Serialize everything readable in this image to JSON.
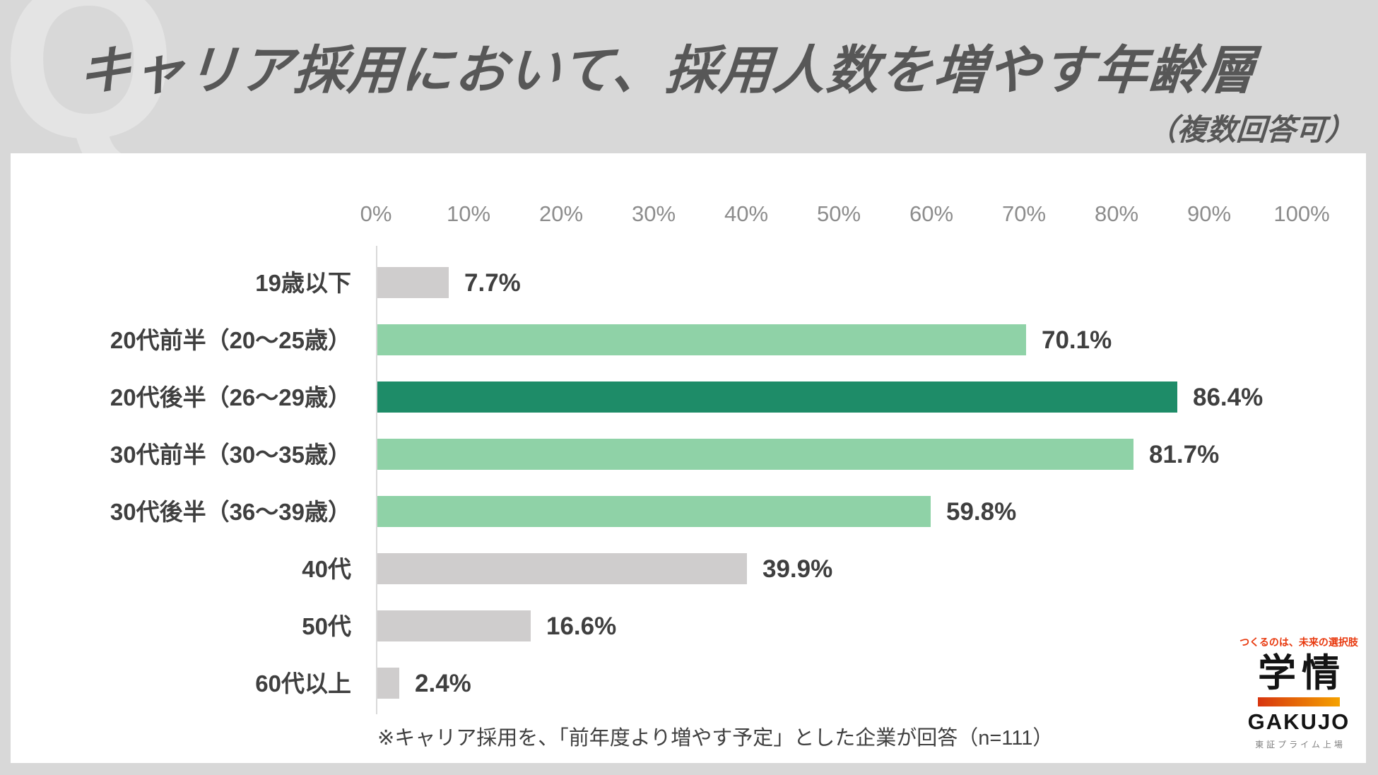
{
  "header": {
    "watermark": "Q",
    "title": "キャリア採用において、採用人数を増やす年齢層",
    "subtitle": "（複数回答可）"
  },
  "chart_data": {
    "type": "bar",
    "orientation": "horizontal",
    "title": "キャリア採用において、採用人数を増やす年齢層（複数回答可）",
    "categories": [
      "19歳以下",
      "20代前半（20〜25歳）",
      "20代後半（26〜29歳）",
      "30代前半（30〜35歳）",
      "30代後半（36〜39歳）",
      "40代",
      "50代",
      "60代以上"
    ],
    "values": [
      7.7,
      70.1,
      86.4,
      81.7,
      59.8,
      39.9,
      16.6,
      2.4
    ],
    "value_labels": [
      "7.7%",
      "70.1%",
      "86.4%",
      "81.7%",
      "59.8%",
      "39.9%",
      "16.6%",
      "2.4%"
    ],
    "bar_color_keys": [
      "gray",
      "light",
      "dark",
      "light",
      "light",
      "gray",
      "gray",
      "gray"
    ],
    "palette": {
      "gray": "#cfcdcd",
      "light": "#8fd2a7",
      "dark": "#1e8c68"
    },
    "x_ticks": [
      "0%",
      "10%",
      "20%",
      "30%",
      "40%",
      "50%",
      "60%",
      "70%",
      "80%",
      "90%",
      "100%"
    ],
    "xlim": [
      0,
      100
    ],
    "grid": false,
    "legend": "none"
  },
  "footnote": "※キャリア採用を、「前年度より増やす予定」とした企業が回答（n=111）",
  "logo": {
    "tagline": "つくるのは、未来の選択肢",
    "name_jp": "学情",
    "name_en": "GAKUJO",
    "listing": "東証プライム上場",
    "accent_red": "#e8380d",
    "accent_orange": "#f5a200"
  }
}
